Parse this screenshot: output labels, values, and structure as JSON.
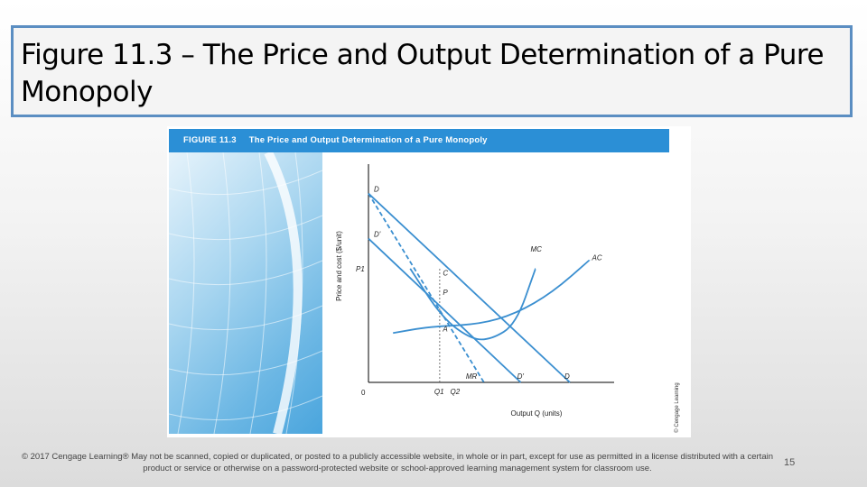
{
  "slide": {
    "title": "Figure 11.3 – The Price and Output Determination of a Pure Monopoly",
    "footer": "© 2017 Cengage Learning® May not be scanned, copied or duplicated, or posted to a publicly accessible website, in whole or in part, except for use as permitted in a license distributed with a certain product or service or otherwise on a password-protected website or school-approved learning management system for classroom use.",
    "page_number": "15"
  },
  "figure": {
    "number": "FIGURE 11.3",
    "caption": "The Price and Output Determination of a Pure Monopoly",
    "side_credit": "© Cengage Learning",
    "colors": {
      "header": "#2b8fd6",
      "curve": "#3b8fd0",
      "axis": "#000000"
    }
  },
  "chart_data": {
    "type": "line",
    "title": "The Price and Output Determination of a Pure Monopoly",
    "xlabel": "Output Q (units)",
    "ylabel": "Price and cost ($/unit)",
    "xlim": [
      0,
      100
    ],
    "ylim": [
      0,
      100
    ],
    "origin_label": "0",
    "x_tick_labels": [
      "Q1",
      "Q2"
    ],
    "y_tick_labels": [
      "P1"
    ],
    "series": [
      {
        "name": "D",
        "style": "solid",
        "x": [
          0,
          82
        ],
        "y": [
          88,
          0
        ],
        "labels": [
          "D",
          "D"
        ]
      },
      {
        "name": "D'",
        "style": "solid",
        "x": [
          0,
          62
        ],
        "y": [
          67,
          0
        ],
        "labels": [
          "D'",
          "D'"
        ]
      },
      {
        "name": "MR",
        "style": "dashed",
        "x": [
          0,
          47
        ],
        "y": [
          88,
          0
        ],
        "labels": [
          "MR"
        ]
      },
      {
        "name": "MC",
        "style": "solid",
        "x": [
          17,
          30,
          42,
          50,
          60,
          68
        ],
        "y": [
          53,
          30,
          20,
          20,
          27,
          53
        ],
        "labels": [
          "MC"
        ]
      },
      {
        "name": "AC",
        "style": "solid",
        "x": [
          10,
          25,
          45,
          60,
          75,
          90
        ],
        "y": [
          23,
          26,
          27,
          32,
          42,
          57
        ],
        "labels": [
          "AC"
        ]
      }
    ],
    "points": [
      {
        "label": "C",
        "x": 31,
        "y": 49
      },
      {
        "label": "P",
        "x": 31,
        "y": 40
      },
      {
        "label": "A",
        "x": 31,
        "y": 23
      }
    ],
    "guide_lines": [
      {
        "label": "Q1",
        "x": 29,
        "from_y": 0,
        "to_y": 53,
        "style": "dotted"
      }
    ],
    "annotations": {
      "D": "D",
      "D_prime": "D'",
      "MR": "MR",
      "MC": "MC",
      "AC": "AC",
      "C": "C",
      "P": "P",
      "A": "A",
      "Q1": "Q1",
      "Q2": "Q2",
      "P1": "P1"
    }
  }
}
